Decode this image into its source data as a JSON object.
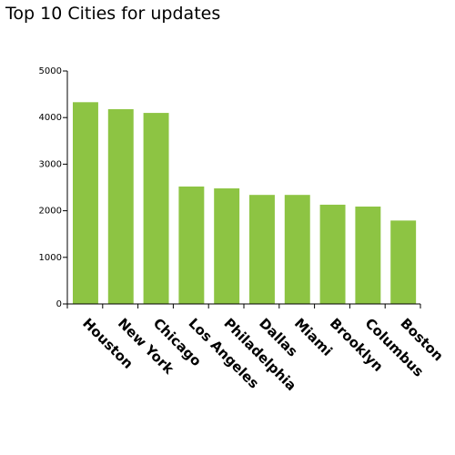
{
  "chart_data": {
    "type": "bar",
    "title": "Top 10 Cities for updates",
    "categories": [
      "Houston",
      "New York",
      "Chicago",
      "Los Angeles",
      "Philadelphia",
      "Dallas",
      "Miami",
      "Brooklyn",
      "Columbus",
      "Boston"
    ],
    "values": [
      4330,
      4180,
      4100,
      2520,
      2480,
      2340,
      2340,
      2130,
      2090,
      1790
    ],
    "yticks": [
      "0",
      "1000",
      "2000",
      "3000",
      "4000",
      "5000"
    ],
    "ylim": [
      0,
      5000
    ],
    "xlabel": "",
    "ylabel": "",
    "grid": false,
    "bar_color": "#8dc443"
  }
}
